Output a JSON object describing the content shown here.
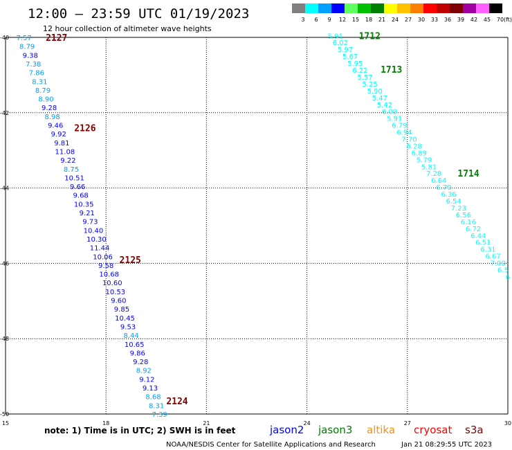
{
  "header": {
    "title": "12:00 — 23:59 UTC 01/19/2023",
    "subtitle": "12 hour collection of altimeter wave heights"
  },
  "colorbar": {
    "unit": "(ft)",
    "bins": [
      {
        "label": "3",
        "color": "#808080"
      },
      {
        "label": "6",
        "color": "#00ffff"
      },
      {
        "label": "9",
        "color": "#00a0ff"
      },
      {
        "label": "12",
        "color": "#0000ff"
      },
      {
        "label": "15",
        "color": "#60ff60"
      },
      {
        "label": "18",
        "color": "#00c000"
      },
      {
        "label": "21",
        "color": "#008000"
      },
      {
        "label": "24",
        "color": "#ffff00"
      },
      {
        "label": "27",
        "color": "#ffc000"
      },
      {
        "label": "30",
        "color": "#ff8000"
      },
      {
        "label": "33",
        "color": "#ff0000"
      },
      {
        "label": "36",
        "color": "#c00000"
      },
      {
        "label": "39",
        "color": "#800000"
      },
      {
        "label": "42",
        "color": "#a000a0"
      },
      {
        "label": "45",
        "color": "#ff60ff"
      },
      {
        "label": "70",
        "color": "#000000"
      }
    ]
  },
  "note": "note:  1) Time is in UTC; 2) SWH is in feet",
  "satellites": [
    {
      "name": "jason2",
      "color": "#0000ff"
    },
    {
      "name": "jason3",
      "color": "#008000"
    },
    {
      "name": "altika",
      "color": "#ff9000"
    },
    {
      "name": "cryosat",
      "color": "#ff0000"
    },
    {
      "name": "s3a",
      "color": "#800000"
    }
  ],
  "footer": {
    "credit": "NOAA/NESDIS Center for Satellite Applications and Research",
    "timestamp": "Jan 21 08:29:55 UTC 2023"
  },
  "chart_data": {
    "type": "scatter",
    "xlim": [
      15,
      30
    ],
    "ylim": [
      -50,
      -40
    ],
    "x_ticks": [
      "15",
      "18",
      "21",
      "24",
      "27",
      "30"
    ],
    "y_ticks": [
      "-40",
      "-42",
      "-44",
      "-46",
      "-48",
      "-50"
    ],
    "grid": true,
    "pass_labels": [
      {
        "text": "2127",
        "x": 16.2,
        "y": -40.0,
        "color": "#800000"
      },
      {
        "text": "2126",
        "x": 17.05,
        "y": -42.4,
        "color": "#800000"
      },
      {
        "text": "2125",
        "x": 18.4,
        "y": -45.9,
        "color": "#800000"
      },
      {
        "text": "2124",
        "x": 19.8,
        "y": -49.65,
        "color": "#800000"
      },
      {
        "text": "1712",
        "x": 25.55,
        "y": -39.95,
        "color": "#008000"
      },
      {
        "text": "1713",
        "x": 26.2,
        "y": -40.85,
        "color": "#008000"
      },
      {
        "text": "1714",
        "x": 28.5,
        "y": -43.6,
        "color": "#008000"
      }
    ],
    "tracks": [
      {
        "name": "west",
        "x_start": 15.55,
        "x_end": 19.6,
        "y_start": -40.0,
        "y_end": -50.0,
        "points": [
          {
            "v": "7.57",
            "c": "#00a0ff"
          },
          {
            "v": "8.79",
            "c": "#00a0ff"
          },
          {
            "v": "9.38",
            "c": "#0000ff"
          },
          {
            "v": "7.38",
            "c": "#00a0ff"
          },
          {
            "v": "7.86",
            "c": "#00a0ff"
          },
          {
            "v": "8.31",
            "c": "#00a0ff"
          },
          {
            "v": "8.79",
            "c": "#00a0ff"
          },
          {
            "v": "8.90",
            "c": "#00a0ff"
          },
          {
            "v": "9.28",
            "c": "#0000ff"
          },
          {
            "v": "8.98",
            "c": "#00a0ff"
          },
          {
            "v": "9.46",
            "c": "#0000ff"
          },
          {
            "v": "9.92",
            "c": "#0000ff"
          },
          {
            "v": "9.81",
            "c": "#0000ff"
          },
          {
            "v": "11.08",
            "c": "#0000ff"
          },
          {
            "v": "9.22",
            "c": "#0000ff"
          },
          {
            "v": "8.75",
            "c": "#00a0ff"
          },
          {
            "v": "10.51",
            "c": "#0000ff"
          },
          {
            "v": "9.66",
            "c": "#0000ff"
          },
          {
            "v": "9.68",
            "c": "#0000ff"
          },
          {
            "v": "10.35",
            "c": "#0000ff"
          },
          {
            "v": "9.21",
            "c": "#0000ff"
          },
          {
            "v": "9.73",
            "c": "#0000ff"
          },
          {
            "v": "10.40",
            "c": "#0000ff"
          },
          {
            "v": "10.30",
            "c": "#0000ff"
          },
          {
            "v": "11.44",
            "c": "#0000ff"
          },
          {
            "v": "10.06",
            "c": "#0000ff"
          },
          {
            "v": "9.58",
            "c": "#0000ff"
          },
          {
            "v": "10.68",
            "c": "#0000ff"
          },
          {
            "v": "10.60",
            "c": "#0000ff"
          },
          {
            "v": "10.53",
            "c": "#0000ff"
          },
          {
            "v": "9.60",
            "c": "#0000ff"
          },
          {
            "v": "9.85",
            "c": "#0000ff"
          },
          {
            "v": "10.45",
            "c": "#0000ff"
          },
          {
            "v": "9.53",
            "c": "#0000ff"
          },
          {
            "v": "8.44",
            "c": "#00a0ff"
          },
          {
            "v": "10.65",
            "c": "#0000ff"
          },
          {
            "v": "9.86",
            "c": "#0000ff"
          },
          {
            "v": "9.28",
            "c": "#0000ff"
          },
          {
            "v": "8.92",
            "c": "#00a0ff"
          },
          {
            "v": "9.12",
            "c": "#0000ff"
          },
          {
            "v": "9.13",
            "c": "#0000ff"
          },
          {
            "v": "8.68",
            "c": "#00a0ff"
          },
          {
            "v": "8.31",
            "c": "#00a0ff"
          },
          {
            "v": "7.39",
            "c": "#00a0ff"
          }
        ]
      },
      {
        "name": "east",
        "x_start": 24.85,
        "x_end": 30.0,
        "y_start": -39.95,
        "y_end": -46.35,
        "points": [
          {
            "v": "5.91",
            "c": "#00ffff"
          },
          {
            "v": "6.02",
            "c": "#00ffff"
          },
          {
            "v": "5.97",
            "c": "#00ffff"
          },
          {
            "v": "5.67",
            "c": "#00ffff"
          },
          {
            "v": "5.95",
            "c": "#00ffff"
          },
          {
            "v": "6.22",
            "c": "#00ffff"
          },
          {
            "v": "5.57",
            "c": "#00ffff"
          },
          {
            "v": "5.25",
            "c": "#00ffff"
          },
          {
            "v": "5.90",
            "c": "#00ffff"
          },
          {
            "v": "5.47",
            "c": "#00ffff"
          },
          {
            "v": "5.42",
            "c": "#00ffff"
          },
          {
            "v": "6.09",
            "c": "#00ffff"
          },
          {
            "v": "5.91",
            "c": "#00ffff"
          },
          {
            "v": "6.79",
            "c": "#00ffff"
          },
          {
            "v": "6.94",
            "c": "#00ffff"
          },
          {
            "v": "7.70",
            "c": "#00ffff"
          },
          {
            "v": "6.28",
            "c": "#00ffff"
          },
          {
            "v": "6.89",
            "c": "#00ffff"
          },
          {
            "v": "5.79",
            "c": "#00ffff"
          },
          {
            "v": "5.81",
            "c": "#00ffff"
          },
          {
            "v": "7.28",
            "c": "#00ffff"
          },
          {
            "v": "6.64",
            "c": "#00ffff"
          },
          {
            "v": "6.70",
            "c": "#00ffff"
          },
          {
            "v": "6.36",
            "c": "#00ffff"
          },
          {
            "v": "6.54",
            "c": "#00ffff"
          },
          {
            "v": "7.23",
            "c": "#00ffff"
          },
          {
            "v": "6.56",
            "c": "#00ffff"
          },
          {
            "v": "6.16",
            "c": "#00ffff"
          },
          {
            "v": "6.72",
            "c": "#00ffff"
          },
          {
            "v": "6.44",
            "c": "#00ffff"
          },
          {
            "v": "6.51",
            "c": "#00ffff"
          },
          {
            "v": "6.31",
            "c": "#00ffff"
          },
          {
            "v": "6.67",
            "c": "#00ffff"
          },
          {
            "v": "7.00",
            "c": "#00ffff"
          },
          {
            "v": "6.5",
            "c": "#00ffff"
          },
          {
            "v": "6",
            "c": "#00ffff"
          }
        ]
      }
    ]
  }
}
